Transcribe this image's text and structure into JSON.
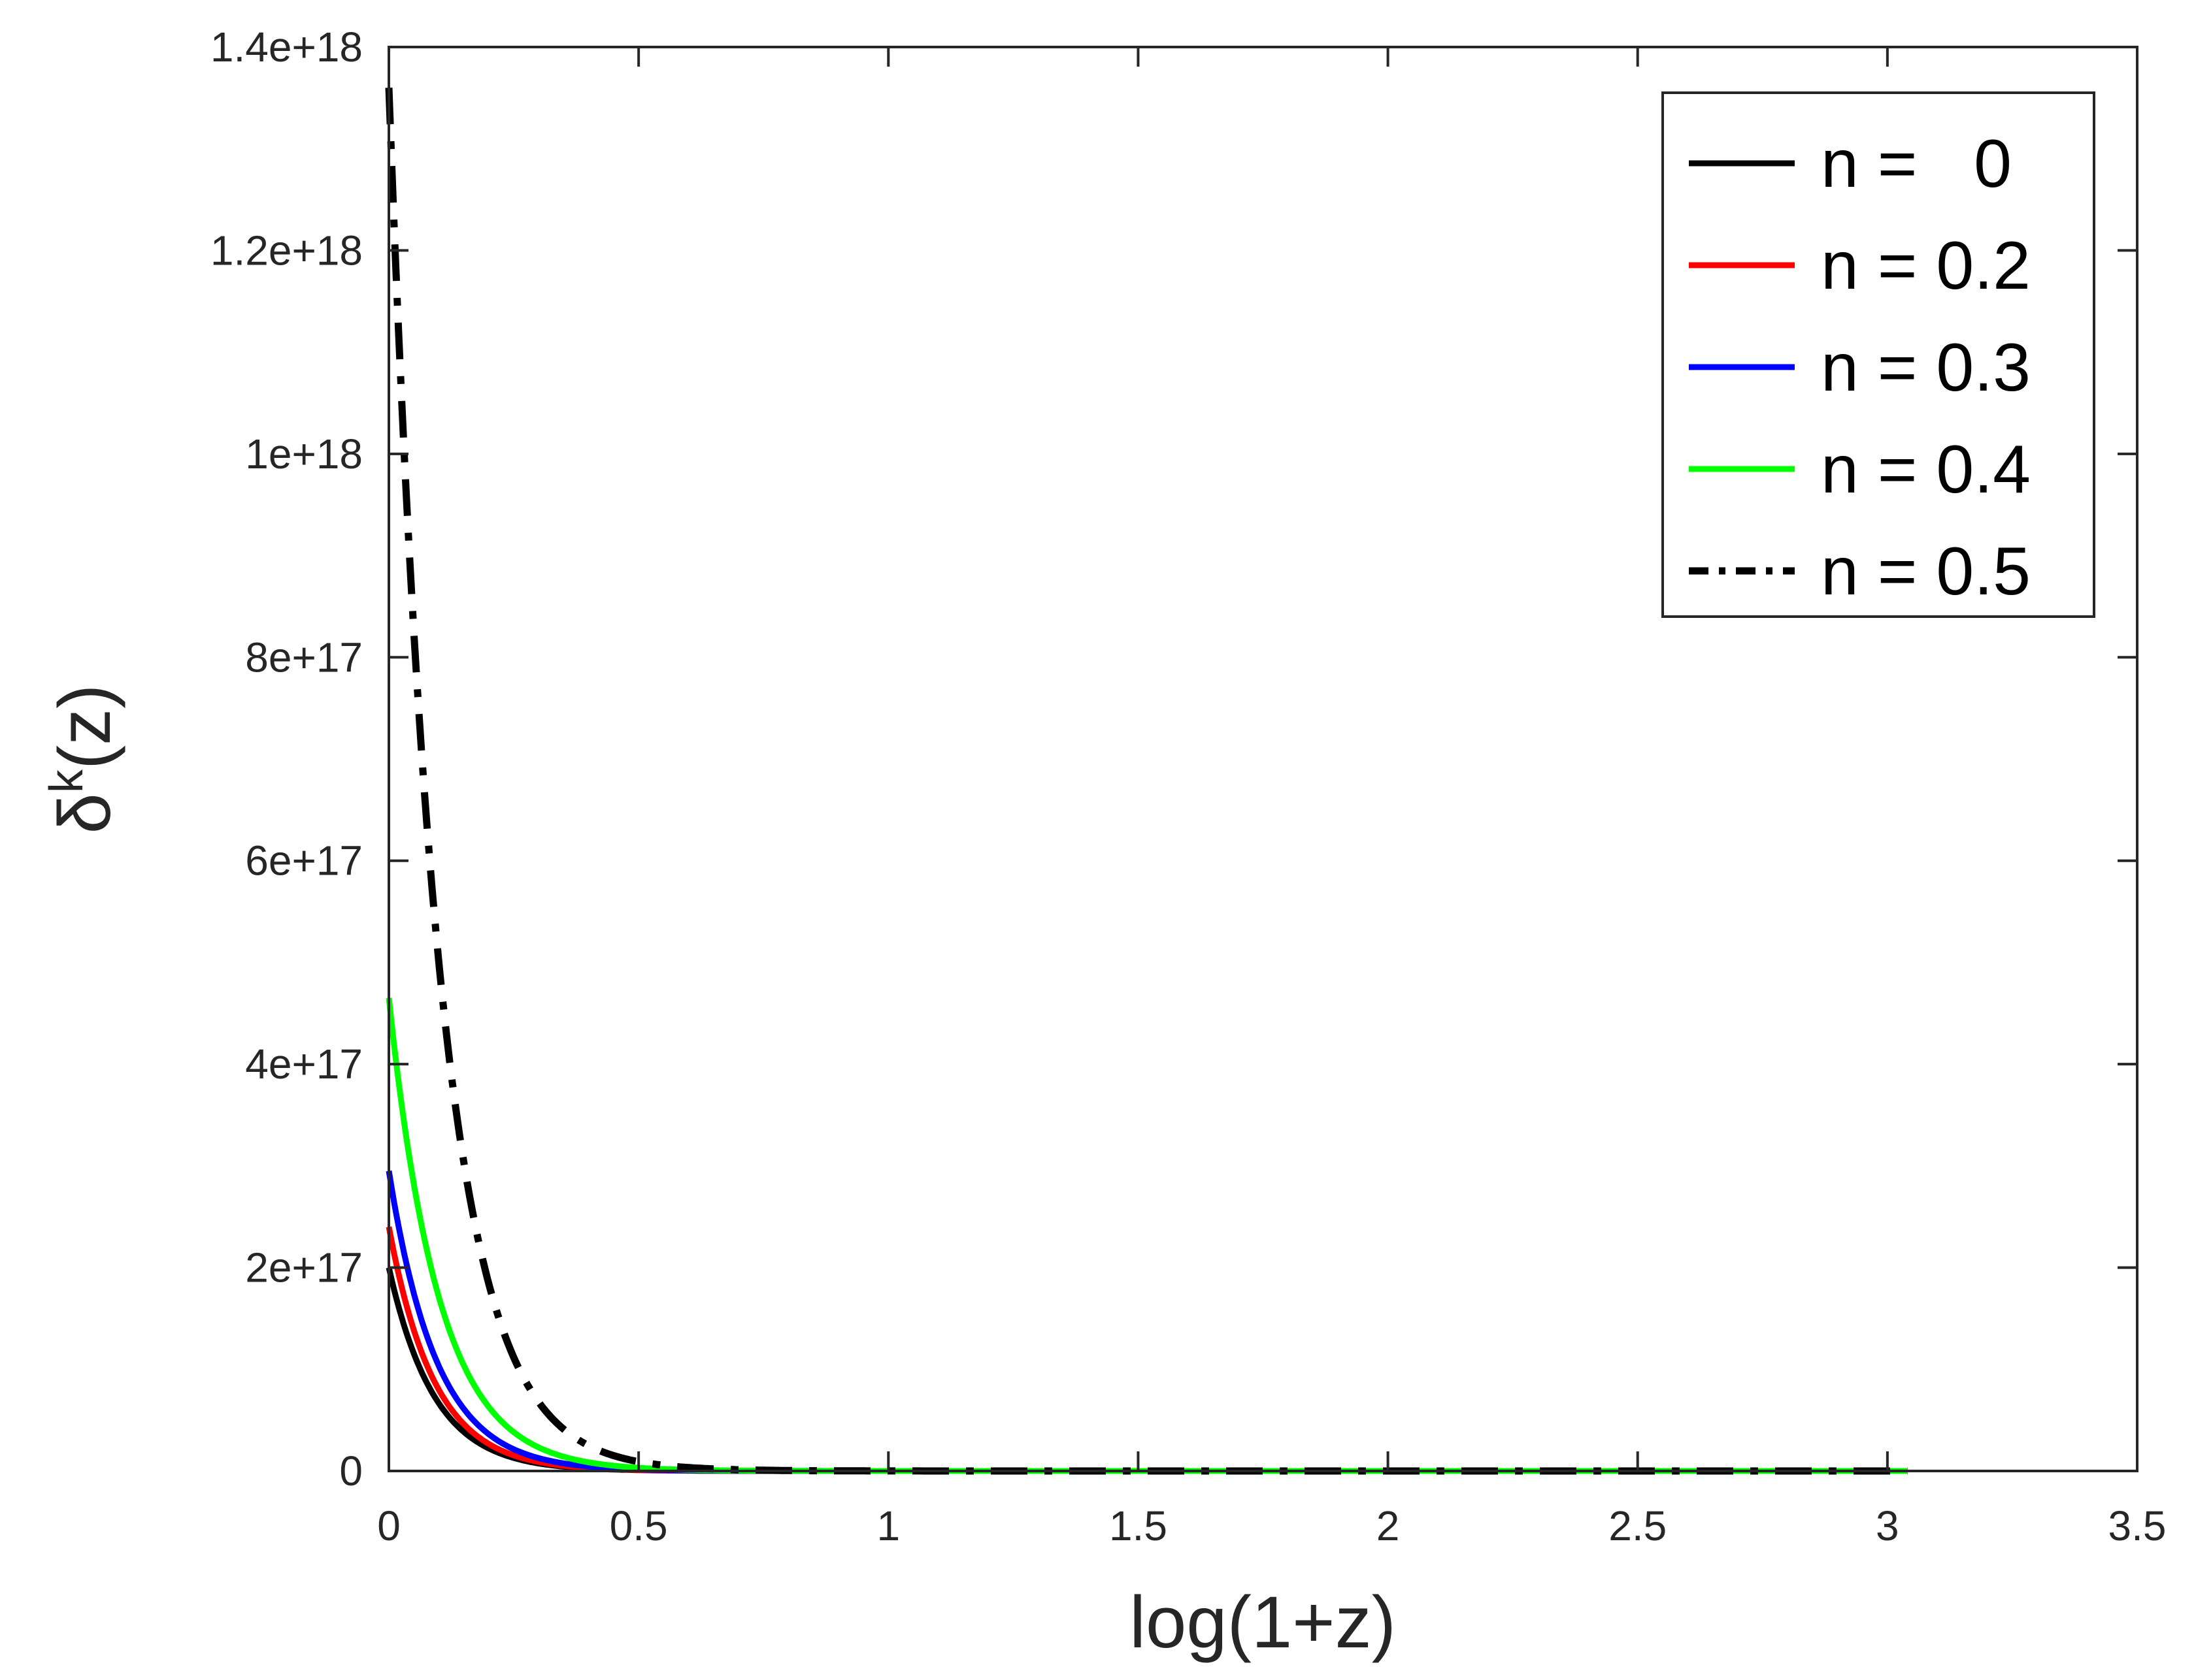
{
  "chart_data": {
    "type": "line",
    "title": "",
    "xlabel": "log(1+z)",
    "ylabel_base": "δ",
    "ylabel_sup": "k",
    "ylabel_tail": "(z)",
    "xlim": [
      0,
      3.5
    ],
    "ylim": [
      0,
      1.4e+18
    ],
    "xticks": [
      0,
      0.5,
      1,
      1.5,
      2,
      2.5,
      3,
      3.5
    ],
    "xtick_labels": [
      "0",
      "0.5",
      "1",
      "1.5",
      "2",
      "2.5",
      "3",
      "3.5"
    ],
    "yticks": [
      0,
      2e+17,
      4e+17,
      6e+17,
      8e+17,
      1e+18,
      1.2e+18,
      1.4e+18
    ],
    "ytick_labels": [
      "0",
      "2e+17",
      "4e+17",
      "6e+17",
      "8e+17",
      "1e+18",
      "1.2e+18",
      "1.4e+18"
    ],
    "grid": false,
    "legend_position": "top-right",
    "x_max_data": 3.04,
    "series": [
      {
        "name": "n =   0",
        "color": "#000000",
        "dash": "solid",
        "y0": 2e+17,
        "decay": 11.0
      },
      {
        "name": "n = 0.2",
        "color": "#ff0000",
        "dash": "solid",
        "y0": 2.4e+17,
        "decay": 11.0
      },
      {
        "name": "n = 0.3",
        "color": "#0000ff",
        "dash": "solid",
        "y0": 2.95e+17,
        "decay": 10.5
      },
      {
        "name": "n = 0.4",
        "color": "#00ff00",
        "dash": "solid",
        "y0": 4.65e+17,
        "decay": 10.0
      },
      {
        "name": "n = 0.5",
        "color": "#000000",
        "dash": "dashdot",
        "y0": 1.36e+18,
        "decay": 10.0
      }
    ]
  }
}
